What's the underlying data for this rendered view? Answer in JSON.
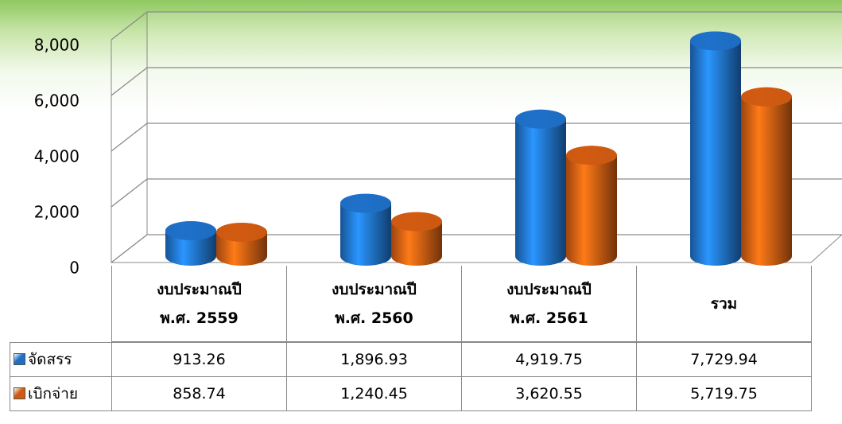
{
  "chart_data": {
    "type": "cylinder-bar",
    "categories": [
      "งบประมาณปี พ.ศ. 2559",
      "งบประมาณปี พ.ศ. 2560",
      "งบประมาณปี พ.ศ. 2561",
      "รวม"
    ],
    "series": [
      {
        "name": "จัดสรร",
        "color": "#1f6fc6",
        "values": [
          913.26,
          1896.93,
          4919.75,
          7729.94
        ],
        "value_labels": [
          "913.26",
          "1,896.93",
          "4,919.75",
          "7,729.94"
        ]
      },
      {
        "name": "เบิกจ่าย",
        "color": "#d05a12",
        "values": [
          858.74,
          1240.45,
          3620.55,
          5719.75
        ],
        "value_labels": [
          "858.74",
          "1,240.45",
          "3,620.55",
          "5,719.75"
        ]
      }
    ],
    "ylim": [
      0,
      8000
    ],
    "yticks": [
      0,
      {
        "value": 2000,
        "label": "2,000"
      },
      {
        "value": 4000,
        "label": "4,000"
      },
      {
        "value": 6000,
        "label": "6,000"
      },
      {
        "value": 8000,
        "label": "8,000"
      }
    ],
    "grid": true
  }
}
